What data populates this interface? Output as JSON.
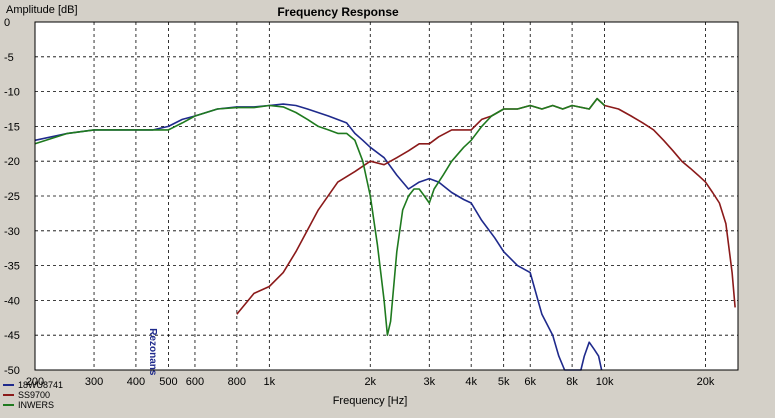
{
  "chart_data": {
    "type": "line",
    "title": "Frequency Response",
    "xlabel": "Frequency [Hz]",
    "ylabel": "Amplitude [dB]",
    "x_scale": "log",
    "xlim": [
      200,
      25000
    ],
    "ylim": [
      -50,
      0
    ],
    "grid": true,
    "x_ticks": [
      {
        "v": 200,
        "t": "200"
      },
      {
        "v": 300,
        "t": "300"
      },
      {
        "v": 400,
        "t": "400"
      },
      {
        "v": 500,
        "t": "500"
      },
      {
        "v": 600,
        "t": "600"
      },
      {
        "v": 800,
        "t": "800"
      },
      {
        "v": 1000,
        "t": "1k"
      },
      {
        "v": 2000,
        "t": "2k"
      },
      {
        "v": 3000,
        "t": "3k"
      },
      {
        "v": 4000,
        "t": "4k"
      },
      {
        "v": 5000,
        "t": "5k"
      },
      {
        "v": 6000,
        "t": "6k"
      },
      {
        "v": 8000,
        "t": "8k"
      },
      {
        "v": 10000,
        "t": "10k"
      },
      {
        "v": 20000,
        "t": "20k"
      }
    ],
    "y_ticks": [
      {
        "v": 0,
        "t": "0"
      },
      {
        "v": -5,
        "t": "-5"
      },
      {
        "v": -10,
        "t": "-10"
      },
      {
        "v": -15,
        "t": "-15"
      },
      {
        "v": -20,
        "t": "-20"
      },
      {
        "v": -25,
        "t": "-25"
      },
      {
        "v": -30,
        "t": "-30"
      },
      {
        "v": -35,
        "t": "-35"
      },
      {
        "v": -40,
        "t": "-40"
      },
      {
        "v": -45,
        "t": "-45"
      },
      {
        "v": -50,
        "t": "-50"
      }
    ],
    "legend_position": "bottom-left",
    "series": [
      {
        "name": "18WU8741",
        "color": "#1f2a8c",
        "x": [
          200,
          250,
          300,
          350,
          400,
          450,
          500,
          550,
          600,
          700,
          800,
          900,
          1000,
          1100,
          1200,
          1300,
          1500,
          1700,
          1800,
          1900,
          2000,
          2200,
          2400,
          2600,
          2800,
          3000,
          3200,
          3500,
          3800,
          4000,
          4300,
          4700,
          5000,
          5500,
          6000,
          6500,
          7000,
          7300,
          7600,
          7900,
          8200,
          8500,
          8700,
          9000,
          9300,
          9600,
          9800
        ],
        "y": [
          -17,
          -16,
          -15.5,
          -15.5,
          -15.5,
          -15.5,
          -15,
          -14,
          -13.5,
          -12.5,
          -12.2,
          -12.2,
          -12,
          -11.8,
          -12,
          -12.5,
          -13.5,
          -14.5,
          -16,
          -17,
          -18,
          -19.5,
          -22,
          -24,
          -23,
          -22.5,
          -23,
          -24.5,
          -25.5,
          -26,
          -28.5,
          -31,
          -33,
          -35,
          -36,
          -42,
          -45,
          -48,
          -50,
          -50,
          -50,
          -50,
          -48,
          -46,
          -47,
          -48,
          -50
        ]
      },
      {
        "name": "SS9700",
        "color": "#8b1a1a",
        "x": [
          800,
          900,
          1000,
          1100,
          1200,
          1400,
          1600,
          1800,
          2000,
          2200,
          2400,
          2600,
          2800,
          3000,
          3200,
          3500,
          3800,
          4000,
          4300,
          4600,
          5000,
          5500,
          6000,
          6500,
          7000,
          7500,
          8000,
          9000,
          9500,
          10000,
          11000,
          12000,
          13000,
          14000,
          15000,
          16000,
          17000,
          18000,
          19000,
          20000,
          21000,
          22000,
          23000,
          24000,
          24500
        ],
        "y": [
          -42,
          -39,
          -38,
          -36,
          -33,
          -27,
          -23,
          -21.5,
          -20,
          -20.5,
          -19.5,
          -18.5,
          -17.5,
          -17.5,
          -16.5,
          -15.5,
          -15.5,
          -15.5,
          -14,
          -13.5,
          -12.5,
          -12.5,
          -12,
          -12.5,
          -12,
          -12.5,
          -12,
          -12.5,
          -11,
          -12,
          -12.5,
          -13.5,
          -14.5,
          -15.5,
          -17,
          -18.5,
          -20,
          -21,
          -22,
          -23,
          -24.5,
          -26,
          -29,
          -36,
          -41
        ]
      },
      {
        "name": "INWERS",
        "color": "#1f7a1f",
        "x": [
          200,
          250,
          300,
          350,
          400,
          450,
          500,
          550,
          600,
          700,
          800,
          900,
          1000,
          1100,
          1200,
          1300,
          1400,
          1500,
          1600,
          1700,
          1800,
          1900,
          2000,
          2100,
          2200,
          2250,
          2300,
          2400,
          2500,
          2600,
          2700,
          2800,
          2900,
          3000,
          3100,
          3300,
          3500,
          3800,
          4000,
          4300,
          4600,
          5000,
          5500,
          6000,
          6500,
          7000,
          7500,
          8000,
          9000,
          9500,
          10000
        ],
        "y": [
          -17.5,
          -16,
          -15.5,
          -15.5,
          -15.5,
          -15.5,
          -15.5,
          -14.5,
          -13.5,
          -12.5,
          -12.3,
          -12.3,
          -12,
          -12.2,
          -13,
          -14,
          -15,
          -15.5,
          -16,
          -16,
          -17,
          -20,
          -25,
          -32,
          -40,
          -45,
          -43,
          -33,
          -27,
          -25,
          -24,
          -24,
          -25,
          -26,
          -24,
          -22,
          -20,
          -18,
          -17,
          -15,
          -13.5,
          -12.5,
          -12.5,
          -12,
          -12.5,
          -12,
          -12.5,
          -12,
          -12.5,
          -11,
          -12
        ]
      }
    ],
    "annotations": [
      {
        "text": "Rezonans",
        "x": 440,
        "y": -44
      }
    ]
  }
}
